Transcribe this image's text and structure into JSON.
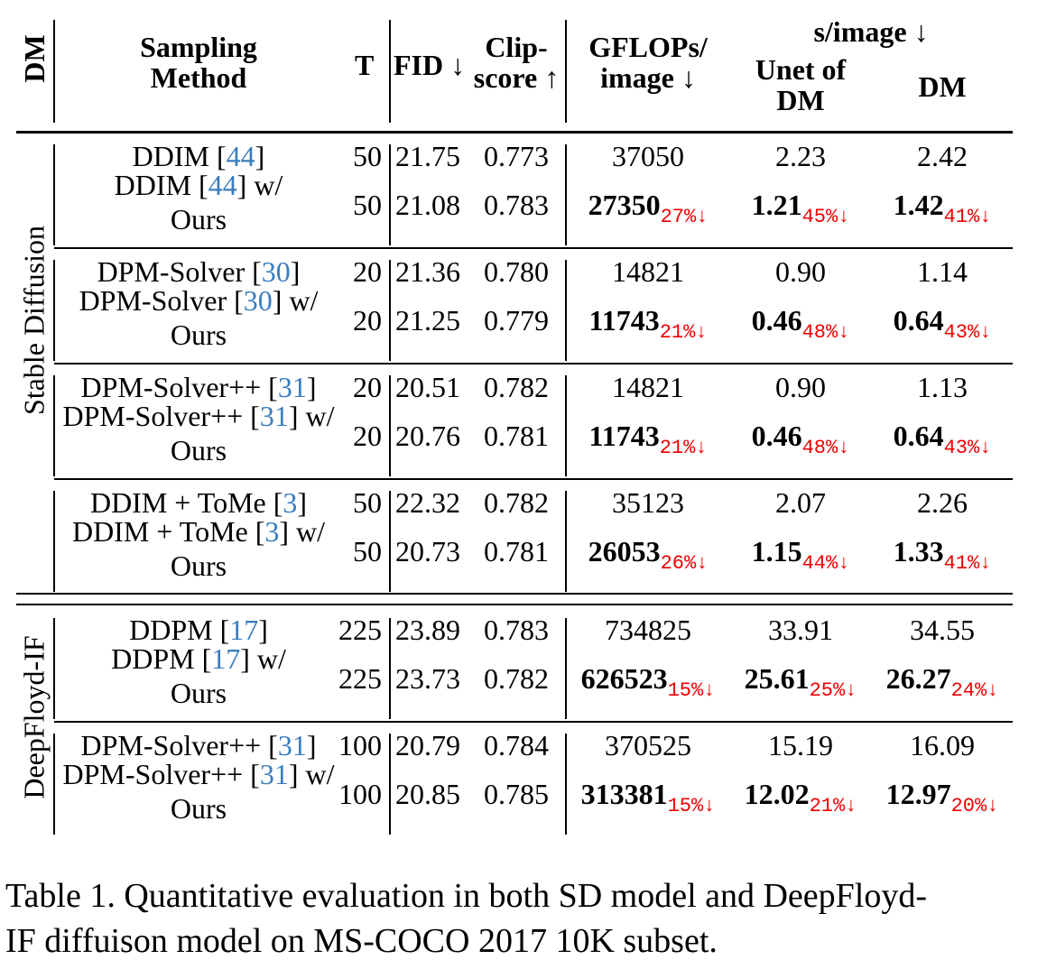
{
  "header": {
    "dm": "DM",
    "method_l1": "Sampling",
    "method_l2": "Method",
    "t": "T",
    "fid": "FID ↓",
    "clip_l1": "Clip-",
    "clip_l2": "score ↑",
    "gflops_l1": "GFLOPs/",
    "gflops_l2": "image ↓",
    "simage": "s/image ↓",
    "unet_l1": "Unet of",
    "unet_l2": "DM",
    "dm_col": "DM"
  },
  "sections": [
    {
      "label": "Stable Diffusion",
      "groups": [
        {
          "base": {
            "name": [
              "DDIM [",
              "44",
              "]"
            ],
            "t": "50",
            "fid": "21.75",
            "clip": "0.773",
            "gflops": "37050",
            "unet": "2.23",
            "dm": "2.42"
          },
          "ours": {
            "name": [
              "DDIM [",
              "44",
              "] w/"
            ],
            "name2": "Ours",
            "t": "50",
            "fid": "21.08",
            "clip": "0.783",
            "gflops": "27350",
            "gflops_pct": "27%↓",
            "unet": "1.21",
            "unet_pct": "45%↓",
            "dm": "1.42",
            "dm_pct": "41%↓"
          }
        },
        {
          "base": {
            "name": [
              "DPM-Solver [",
              "30",
              "]"
            ],
            "t": "20",
            "fid": "21.36",
            "clip": "0.780",
            "gflops": "14821",
            "unet": "0.90",
            "dm": "1.14"
          },
          "ours": {
            "name": [
              "DPM-Solver [",
              "30",
              "] w/"
            ],
            "name2": "Ours",
            "t": "20",
            "fid": "21.25",
            "clip": "0.779",
            "gflops": "11743",
            "gflops_pct": "21%↓",
            "unet": "0.46",
            "unet_pct": "48%↓",
            "dm": "0.64",
            "dm_pct": "43%↓"
          }
        },
        {
          "base": {
            "name": [
              "DPM-Solver++ [",
              "31",
              "]"
            ],
            "t": "20",
            "fid": "20.51",
            "clip": "0.782",
            "gflops": "14821",
            "unet": "0.90",
            "dm": "1.13"
          },
          "ours": {
            "name": [
              "DPM-Solver++ [",
              "31",
              "] w/"
            ],
            "name2": "Ours",
            "t": "20",
            "fid": "20.76",
            "clip": "0.781",
            "gflops": "11743",
            "gflops_pct": "21%↓",
            "unet": "0.46",
            "unet_pct": "48%↓",
            "dm": "0.64",
            "dm_pct": "43%↓"
          }
        },
        {
          "base": {
            "name": [
              "DDIM + ToMe [",
              "3",
              "]"
            ],
            "t": "50",
            "fid": "22.32",
            "clip": "0.782",
            "gflops": "35123",
            "unet": "2.07",
            "dm": "2.26"
          },
          "ours": {
            "name": [
              "DDIM + ToMe [",
              "3",
              "] w/"
            ],
            "name2": "Ours",
            "t": "50",
            "fid": "20.73",
            "clip": "0.781",
            "gflops": "26053",
            "gflops_pct": "26%↓",
            "unet": "1.15",
            "unet_pct": "44%↓",
            "dm": "1.33",
            "dm_pct": "41%↓"
          }
        }
      ]
    },
    {
      "label": "DeepFloyd-IF",
      "groups": [
        {
          "base": {
            "name": [
              "DDPM [",
              "17",
              "]"
            ],
            "t": "225",
            "fid": "23.89",
            "clip": "0.783",
            "gflops": "734825",
            "unet": "33.91",
            "dm": "34.55"
          },
          "ours": {
            "name": [
              "DDPM [",
              "17",
              "] w/"
            ],
            "name2": "Ours",
            "t": "225",
            "fid": "23.73",
            "clip": "0.782",
            "gflops": "626523",
            "gflops_pct": "15%↓",
            "unet": "25.61",
            "unet_pct": "25%↓",
            "dm": "26.27",
            "dm_pct": "24%↓"
          }
        },
        {
          "base": {
            "name": [
              "DPM-Solver++ [",
              "31",
              "]"
            ],
            "t": "100",
            "fid": "20.79",
            "clip": "0.784",
            "gflops": "370525",
            "unet": "15.19",
            "dm": "16.09"
          },
          "ours": {
            "name": [
              "DPM-Solver++ [",
              "31",
              "] w/"
            ],
            "name2": "Ours",
            "t": "100",
            "fid": "20.85",
            "clip": "0.785",
            "gflops": "313381",
            "gflops_pct": "15%↓",
            "unet": "12.02",
            "unet_pct": "21%↓",
            "dm": "12.97",
            "dm_pct": "20%↓"
          }
        }
      ]
    }
  ],
  "caption": {
    "line1": "Table 1. Quantitative evaluation in both SD model and DeepFloyd-",
    "line2": "IF diffuison model on MS-COCO 2017 10K subset."
  }
}
